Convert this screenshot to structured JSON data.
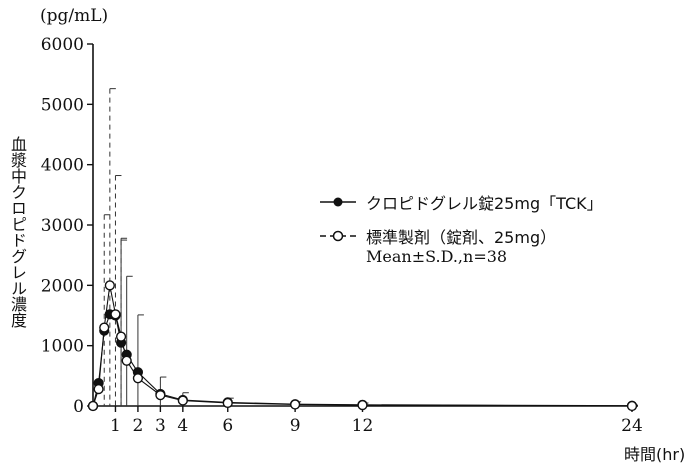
{
  "chart_data": {
    "type": "line",
    "title": "",
    "ylabel": "血漿中クロピドグレル濃度",
    "yunit": "(pg/mL)",
    "xlabel": "時間(hr)",
    "ylim": [
      0,
      6000
    ],
    "xlim": [
      0,
      24
    ],
    "yticks": [
      0,
      1000,
      2000,
      3000,
      4000,
      5000,
      6000
    ],
    "ytick_labels": [
      "0",
      "1000",
      "2000",
      "3000",
      "4000",
      "5000",
      "6000"
    ],
    "xticks": [
      1,
      2,
      3,
      4,
      6,
      9,
      12,
      24
    ],
    "xtick_labels": [
      "1",
      "2",
      "3",
      "4",
      "6",
      "9",
      "12",
      "24"
    ],
    "note": "Mean±S.D.,n=38",
    "series": [
      {
        "name": "クロピドグレル錠25mg「TCK」",
        "marker": "filled-circle",
        "errorbar_style": "solid",
        "x": [
          0,
          0.25,
          0.5,
          0.75,
          1,
          1.25,
          1.5,
          2,
          3,
          4,
          6,
          9,
          12,
          24
        ],
        "y": [
          0,
          380,
          1250,
          1520,
          1500,
          1050,
          850,
          560,
          200,
          100,
          60,
          30,
          20,
          5
        ],
        "sd": [
          0,
          0,
          0,
          0,
          0,
          1730,
          1300,
          950,
          280,
          120,
          70,
          40,
          30,
          10
        ]
      },
      {
        "name": "標準製剤（錠剤、25mg）",
        "marker": "open-circle",
        "errorbar_style": "dashed",
        "x": [
          0,
          0.25,
          0.5,
          0.75,
          1,
          1.25,
          1.5,
          2,
          3,
          4,
          6,
          9,
          12,
          24
        ],
        "y": [
          0,
          280,
          1300,
          2000,
          1520,
          1150,
          750,
          460,
          180,
          90,
          50,
          25,
          15,
          0
        ],
        "sd": [
          0,
          0,
          1870,
          3260,
          2300,
          1600,
          0,
          0,
          0,
          0,
          0,
          0,
          0,
          0
        ]
      }
    ]
  }
}
